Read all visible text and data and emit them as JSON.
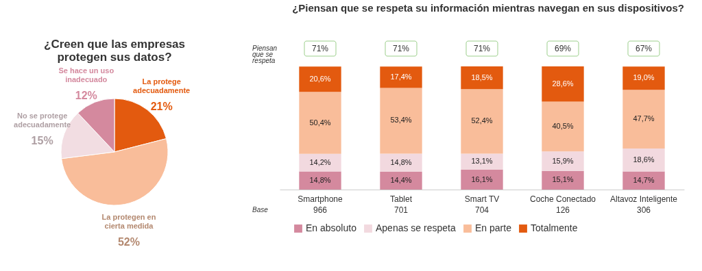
{
  "chart_data": [
    {
      "type": "pie",
      "title": "¿Creen que las empresas protegen sus datos?",
      "categories": [
        "La protege adecuadamente",
        "La protegen en cierta medida",
        "No se protege adecuadamente",
        "Se hace un uso inadecuado"
      ],
      "values": [
        21,
        52,
        15,
        12
      ],
      "colors": [
        "#e35a0f",
        "#f9bd9a",
        "#f2dde2",
        "#d4899e"
      ],
      "value_labels": [
        "21%",
        "52%",
        "15%",
        "12%"
      ]
    },
    {
      "type": "bar",
      "stacked": true,
      "title": "¿Piensan que se respeta su información mientras navegan en sus dispositivos?",
      "categories": [
        "Smartphone",
        "Tablet",
        "Smart TV",
        "Coche Conectado",
        "Altavoz Inteligente"
      ],
      "legend": "bottom",
      "series": [
        {
          "name": "En absoluto",
          "color": "#d4899e",
          "values": [
            14.8,
            14.4,
            16.1,
            15.1,
            14.7
          ],
          "value_labels": [
            "14,8%",
            "14,4%",
            "16,1%",
            "15,1%",
            "14,7%"
          ]
        },
        {
          "name": "Apenas se respeta",
          "color": "#f2d9df",
          "values": [
            14.2,
            14.8,
            13.1,
            15.9,
            18.6
          ],
          "value_labels": [
            "14,2%",
            "14,8%",
            "13,1%",
            "15,9%",
            "18,6%"
          ]
        },
        {
          "name": "En parte",
          "color": "#f9bd9a",
          "values": [
            50.4,
            53.4,
            52.4,
            40.5,
            47.7
          ],
          "value_labels": [
            "50,4%",
            "53,4%",
            "52,4%",
            "40,5%",
            "47,7%"
          ]
        },
        {
          "name": "Totalmente",
          "color": "#e35a0f",
          "values": [
            20.6,
            17.4,
            18.5,
            28.6,
            19.0
          ],
          "value_labels": [
            "20,6%",
            "17,4%",
            "18,5%",
            "28,6%",
            "19,0%"
          ]
        }
      ],
      "annotations": [
        "Piensan que se respeta",
        "71%",
        "71%",
        "71%",
        "69%",
        "67%",
        "Base",
        "966",
        "701",
        "704",
        "126",
        "306"
      ]
    }
  ]
}
